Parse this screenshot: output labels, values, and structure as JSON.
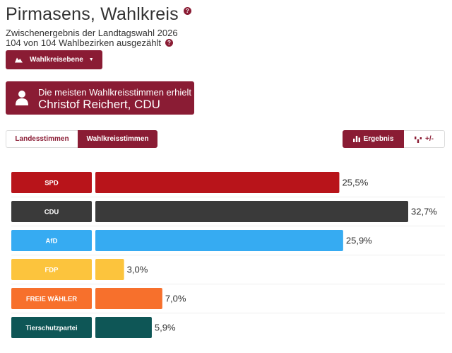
{
  "header": {
    "title": "Pirmasens, Wahlkreis",
    "subtitle": "Zwischenergebnis der Landtagswahl 2026",
    "counted": "104 von 104 Wahlbezirken ausgezählt",
    "help_glyph": "?"
  },
  "level_button": {
    "label": "Wahlkreisebene",
    "caret": "▼"
  },
  "winner": {
    "line1": "Die meisten Wahlkreisstimmen erhielt",
    "line2": "Christof Reichert, CDU"
  },
  "tabs": [
    {
      "label": "Landesstimmen"
    },
    {
      "label": "Wahlkreisstimmen"
    }
  ],
  "view_toggle": {
    "result_label": "Ergebnis",
    "diff_label": "+/-"
  },
  "colors": {
    "accent": "#8a1c34",
    "SPD": "#b8141a",
    "CDU": "#3a3a3a",
    "AfD": "#36abf2",
    "FDP": "#fcc43d",
    "FREIE WÄHLER": "#f7702c",
    "Tierschutzpartei": "#0e5656"
  },
  "chart_data": {
    "type": "bar",
    "orientation": "horizontal",
    "categories": [
      "SPD",
      "CDU",
      "AfD",
      "FDP",
      "FREIE WÄHLER",
      "Tierschutzpartei"
    ],
    "values": [
      25.5,
      32.7,
      25.9,
      3.0,
      7.0,
      5.9
    ],
    "value_labels": [
      "25,5%",
      "32,7%",
      "25,9%",
      "3,0%",
      "7,0%",
      "5,9%"
    ],
    "xlim": [
      0,
      32.7
    ],
    "title": "",
    "xlabel": "",
    "ylabel": ""
  }
}
